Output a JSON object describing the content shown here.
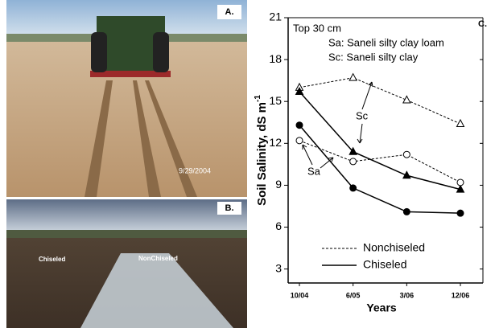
{
  "photos": [
    {
      "label": "A.",
      "date": "9/29/2004"
    },
    {
      "label": "B.",
      "left_caption": "Chiseled",
      "right_caption": "NonChiseled"
    }
  ],
  "chart_data": {
    "type": "line",
    "panel_label": "C.",
    "annotations": {
      "depth": "Top 30 cm",
      "sa_key": "Sa: Saneli silty clay loam",
      "sc_key": "Sc: Saneli silty clay",
      "sc": "Sc",
      "sa": "Sa"
    },
    "xlabel": "Years",
    "ylabel": "Soil Salinity, dS m",
    "ylabel_sup": "-1",
    "categories": [
      "10/04",
      "6/05",
      "3/06",
      "12/06"
    ],
    "ylim": [
      2,
      21
    ],
    "yticks": [
      3,
      6,
      9,
      12,
      15,
      18,
      21
    ],
    "legend": [
      {
        "label": "Nonchiseled",
        "dashed": true
      },
      {
        "label": "Chiseled",
        "dashed": false
      }
    ],
    "series": [
      {
        "soil": "Sc",
        "dashed": true,
        "marker": "triangle",
        "filled": false,
        "color": "#000000",
        "values": [
          16.0,
          16.7,
          15.1,
          13.4
        ]
      },
      {
        "soil": "Sc",
        "dashed": false,
        "marker": "triangle",
        "filled": true,
        "color": "#000000",
        "values": [
          15.7,
          11.4,
          9.7,
          8.7
        ]
      },
      {
        "soil": "Sa",
        "dashed": true,
        "marker": "circle",
        "filled": false,
        "color": "#000000",
        "values": [
          12.2,
          10.7,
          11.2,
          9.2
        ]
      },
      {
        "soil": "Sa",
        "dashed": false,
        "marker": "circle",
        "filled": true,
        "color": "#000000",
        "values": [
          13.3,
          8.8,
          7.1,
          7.0
        ]
      }
    ]
  }
}
